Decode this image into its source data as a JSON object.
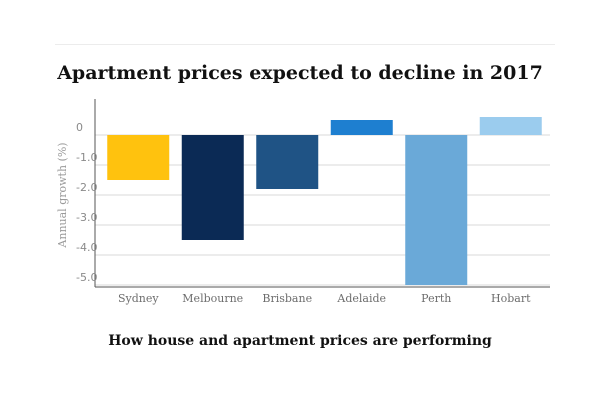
{
  "chart_data": {
    "type": "bar",
    "title": "Apartment prices expected to decline in 2017",
    "subtitle": "How house and apartment prices are performing",
    "ylabel": "Annual growth (%)",
    "xlabel": "",
    "categories": [
      "Sydney",
      "Melbourne",
      "Brisbane",
      "Adelaide",
      "Perth",
      "Hobart"
    ],
    "values": [
      -1.5,
      -3.5,
      -1.8,
      0.5,
      -5.0,
      0.6
    ],
    "colors": [
      "#FFC20E",
      "#0B2A55",
      "#1F5385",
      "#1E7FD0",
      "#6AA9D8",
      "#9BCCEE"
    ],
    "ylim": [
      -5.0,
      0.6
    ],
    "yticks": [
      0,
      -1.0,
      -2.0,
      -3.0,
      -4.0,
      -5.0
    ],
    "ytick_labels": [
      "0",
      "-1.0",
      "-2.0",
      "-3.0",
      "-4.0",
      "-5.0"
    ],
    "grid": true,
    "gridline_color": "#d8d8d8",
    "axis_color": "#555555",
    "legend": "none"
  }
}
